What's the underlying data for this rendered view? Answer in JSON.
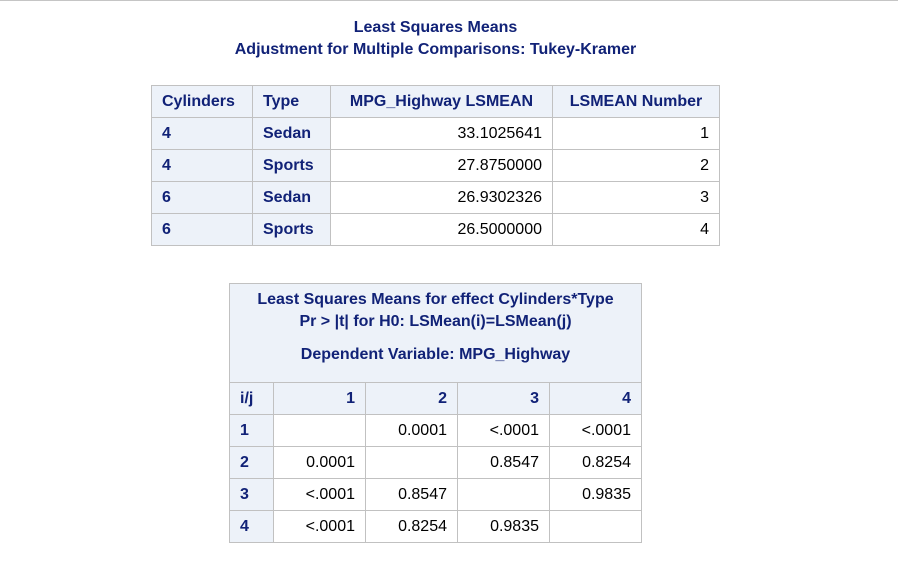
{
  "title": {
    "line1": "Least Squares Means",
    "line2": "Adjustment for Multiple Comparisons: Tukey-Kramer"
  },
  "lsmeans_table": {
    "headers": [
      "Cylinders",
      "Type",
      "MPG_Highway LSMEAN",
      "LSMEAN Number"
    ],
    "rows": [
      {
        "cylinders": "4",
        "type": "Sedan",
        "lsmean": "33.1025641",
        "number": "1"
      },
      {
        "cylinders": "4",
        "type": "Sports",
        "lsmean": "27.8750000",
        "number": "2"
      },
      {
        "cylinders": "6",
        "type": "Sedan",
        "lsmean": "26.9302326",
        "number": "3"
      },
      {
        "cylinders": "6",
        "type": "Sports",
        "lsmean": "26.5000000",
        "number": "4"
      }
    ]
  },
  "pvalue_table": {
    "caption": {
      "line1": "Least Squares Means for effect Cylinders*Type",
      "line2": "Pr > |t| for H0: LSMean(i)=LSMean(j)",
      "line3": "Dependent Variable: MPG_Highway"
    },
    "headers": [
      "i/j",
      "1",
      "2",
      "3",
      "4"
    ],
    "rows": [
      {
        "label": "1",
        "cells": [
          "",
          "0.0001",
          "<.0001",
          "<.0001"
        ]
      },
      {
        "label": "2",
        "cells": [
          "0.0001",
          "",
          "0.8547",
          "0.8254"
        ]
      },
      {
        "label": "3",
        "cells": [
          "<.0001",
          "0.8547",
          "",
          "0.9835"
        ]
      },
      {
        "label": "4",
        "cells": [
          "<.0001",
          "0.8254",
          "0.9835",
          ""
        ]
      }
    ]
  }
}
